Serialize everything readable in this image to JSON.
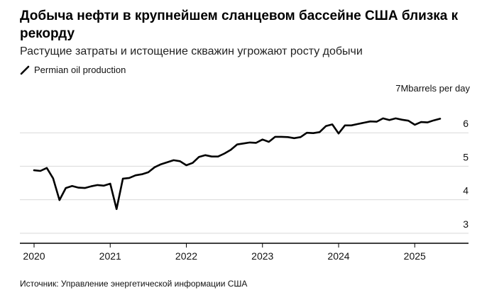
{
  "header": {
    "title": "Добыча нефти в крупнейшем сланцевом бассейне США близка к рекорду",
    "subtitle": "Растущие затраты и истощение скважин угрожают росту добычи"
  },
  "legend": {
    "label": "Permian oil production"
  },
  "unit_label": "7Mbarrels per day",
  "source": "Источник: Управление энергетической информации США",
  "colors": {
    "line": "#000000",
    "grid": "#d9d9d9",
    "axis": "#000000"
  },
  "chart_data": {
    "type": "line",
    "title": "Добыча нефти в крупнейшем сланцевом бассейне США близка к рекорду",
    "subtitle": "Растущие затраты и истощение скважин угрожают росту добычи",
    "xlabel": "",
    "ylabel": "7Mbarrels per day",
    "grid": true,
    "legend_position": "top-left",
    "ylim": [
      2.7,
      7
    ],
    "xlim": [
      "2019-12",
      "2025-08"
    ],
    "y_ticks": [
      3,
      4,
      5,
      6
    ],
    "x_ticks": [
      "2020",
      "2021",
      "2022",
      "2023",
      "2024",
      "2025"
    ],
    "series": [
      {
        "name": "Permian oil production",
        "x": [
          "2020-01",
          "2020-02",
          "2020-03",
          "2020-04",
          "2020-05",
          "2020-06",
          "2020-07",
          "2020-08",
          "2020-09",
          "2020-10",
          "2020-11",
          "2020-12",
          "2021-01",
          "2021-02",
          "2021-03",
          "2021-04",
          "2021-05",
          "2021-06",
          "2021-07",
          "2021-08",
          "2021-09",
          "2021-10",
          "2021-11",
          "2021-12",
          "2022-01",
          "2022-02",
          "2022-03",
          "2022-04",
          "2022-05",
          "2022-06",
          "2022-07",
          "2022-08",
          "2022-09",
          "2022-10",
          "2022-11",
          "2022-12",
          "2023-01",
          "2023-02",
          "2023-03",
          "2023-04",
          "2023-05",
          "2023-06",
          "2023-07",
          "2023-08",
          "2023-09",
          "2023-10",
          "2023-11",
          "2023-12",
          "2024-01",
          "2024-02",
          "2024-03",
          "2024-04",
          "2024-05",
          "2024-06",
          "2024-07",
          "2024-08",
          "2024-09",
          "2024-10",
          "2024-11",
          "2024-12",
          "2025-01",
          "2025-02",
          "2025-03",
          "2025-04",
          "2025-05"
        ],
        "values": [
          4.88,
          4.86,
          4.95,
          4.64,
          3.99,
          4.35,
          4.41,
          4.36,
          4.35,
          4.4,
          4.44,
          4.42,
          4.48,
          3.72,
          4.63,
          4.65,
          4.73,
          4.76,
          4.82,
          4.97,
          5.06,
          5.12,
          5.18,
          5.15,
          5.03,
          5.1,
          5.28,
          5.33,
          5.29,
          5.29,
          5.38,
          5.49,
          5.65,
          5.68,
          5.71,
          5.7,
          5.8,
          5.73,
          5.88,
          5.88,
          5.87,
          5.84,
          5.87,
          6.0,
          5.99,
          6.02,
          6.2,
          6.25,
          5.98,
          6.22,
          6.22,
          6.26,
          6.3,
          6.34,
          6.33,
          6.43,
          6.38,
          6.43,
          6.39,
          6.36,
          6.24,
          6.32,
          6.31,
          6.37,
          6.42
        ]
      }
    ]
  }
}
